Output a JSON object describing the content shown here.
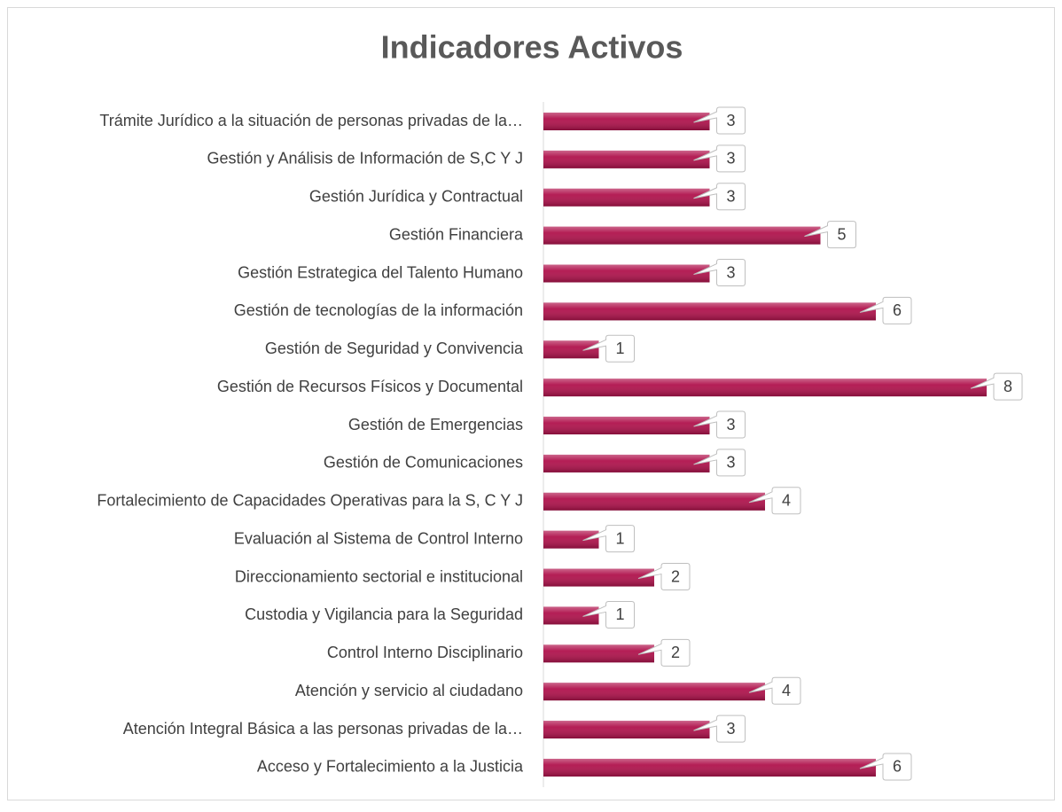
{
  "chart_data": {
    "type": "barh",
    "title": "Indicadores Activos",
    "categories": [
      "Trámite Jurídico a la situación de personas privadas de la…",
      "Gestión y Análisis de  Información de S,C Y J",
      "Gestión Jurídica y Contractual",
      "Gestión Financiera",
      "Gestión Estrategica del Talento Humano",
      "Gestión de tecnologías de la información",
      "Gestión de Seguridad y Convivencia",
      "Gestión de Recursos Físicos y Documental",
      "Gestión de Emergencias",
      "Gestión de Comunicaciones",
      "Fortalecimiento de Capacidades Operativas para la S, C Y J",
      "Evaluación al Sistema de Control Interno",
      "Direccionamiento sectorial e institucional",
      "Custodia y Vigilancia para la Seguridad",
      "Control Interno Disciplinario",
      "Atención y servicio al ciudadano",
      "Atención Integral Básica a las personas privadas de la…",
      "Acceso y Fortalecimiento a la Justicia"
    ],
    "values": [
      3,
      3,
      3,
      5,
      3,
      6,
      1,
      8,
      3,
      3,
      4,
      1,
      2,
      1,
      2,
      4,
      3,
      6
    ],
    "color": "#b0124c",
    "xlim": [
      0,
      9
    ]
  }
}
